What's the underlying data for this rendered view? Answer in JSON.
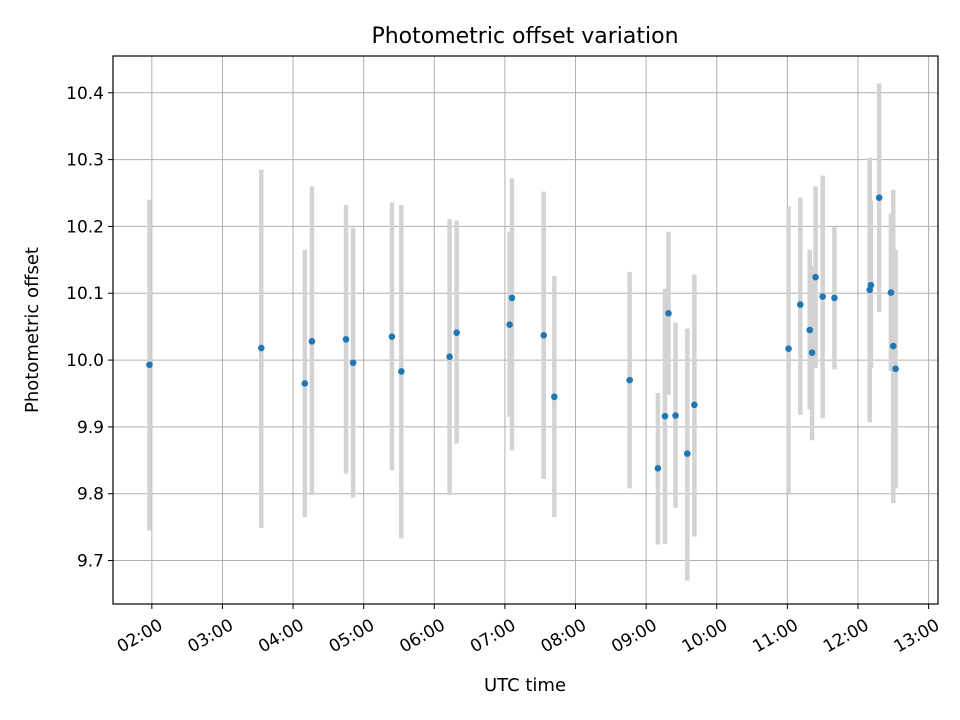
{
  "chart_data": {
    "type": "scatter",
    "title": "Photometric offset variation",
    "xlabel": "UTC time",
    "ylabel": "Photometric offset",
    "x_axis": {
      "kind": "time",
      "range": [
        "01:27",
        "13:08"
      ],
      "ticks": [
        "02:00",
        "03:00",
        "04:00",
        "05:00",
        "06:00",
        "07:00",
        "08:00",
        "09:00",
        "10:00",
        "11:00",
        "12:00",
        "13:00"
      ]
    },
    "y_axis": {
      "range": [
        9.635,
        10.455
      ],
      "ticks": [
        "9.7",
        "9.8",
        "9.9",
        "10.0",
        "10.1",
        "10.2",
        "10.3",
        "10.4"
      ]
    },
    "grid": true,
    "colors": {
      "point": "#1f77b4",
      "errorbar": "#d3d3d3",
      "grid": "#b0b0b0"
    },
    "series": [
      {
        "points": [
          {
            "x": "01:58",
            "y": 9.993,
            "lo": 9.745,
            "hi": 10.24
          },
          {
            "x": "03:33",
            "y": 10.018,
            "lo": 9.749,
            "hi": 10.285
          },
          {
            "x": "04:10",
            "y": 9.965,
            "lo": 9.765,
            "hi": 10.165
          },
          {
            "x": "04:16",
            "y": 10.028,
            "lo": 9.798,
            "hi": 10.26
          },
          {
            "x": "04:45",
            "y": 10.031,
            "lo": 9.83,
            "hi": 10.232
          },
          {
            "x": "04:51",
            "y": 9.996,
            "lo": 9.794,
            "hi": 10.198
          },
          {
            "x": "05:24",
            "y": 10.035,
            "lo": 9.835,
            "hi": 10.236
          },
          {
            "x": "05:32",
            "y": 9.983,
            "lo": 9.733,
            "hi": 10.232
          },
          {
            "x": "06:13",
            "y": 10.005,
            "lo": 9.798,
            "hi": 10.211
          },
          {
            "x": "06:19",
            "y": 10.041,
            "lo": 9.875,
            "hi": 10.209
          },
          {
            "x": "07:04",
            "y": 10.053,
            "lo": 9.915,
            "hi": 10.192
          },
          {
            "x": "07:06",
            "y": 10.093,
            "lo": 9.865,
            "hi": 10.272
          },
          {
            "x": "07:33",
            "y": 10.037,
            "lo": 9.822,
            "hi": 10.252
          },
          {
            "x": "07:42",
            "y": 9.945,
            "lo": 9.765,
            "hi": 10.126
          },
          {
            "x": "08:46",
            "y": 9.97,
            "lo": 9.808,
            "hi": 10.132
          },
          {
            "x": "09:10",
            "y": 9.838,
            "lo": 9.724,
            "hi": 9.951
          },
          {
            "x": "09:16",
            "y": 9.916,
            "lo": 9.725,
            "hi": 10.107
          },
          {
            "x": "09:19",
            "y": 10.07,
            "lo": 9.948,
            "hi": 10.192
          },
          {
            "x": "09:25",
            "y": 9.917,
            "lo": 9.779,
            "hi": 10.056
          },
          {
            "x": "09:35",
            "y": 9.86,
            "lo": 9.67,
            "hi": 10.047
          },
          {
            "x": "09:41",
            "y": 9.933,
            "lo": 9.736,
            "hi": 10.128
          },
          {
            "x": "11:01",
            "y": 10.017,
            "lo": 9.801,
            "hi": 10.23
          },
          {
            "x": "11:11",
            "y": 10.083,
            "lo": 9.918,
            "hi": 10.243
          },
          {
            "x": "11:19",
            "y": 10.045,
            "lo": 9.926,
            "hi": 10.165
          },
          {
            "x": "11:21",
            "y": 10.011,
            "lo": 9.88,
            "hi": 10.141
          },
          {
            "x": "11:24",
            "y": 10.124,
            "lo": 9.988,
            "hi": 10.26
          },
          {
            "x": "11:30",
            "y": 10.095,
            "lo": 9.913,
            "hi": 10.276
          },
          {
            "x": "11:40",
            "y": 10.093,
            "lo": 9.986,
            "hi": 10.199
          },
          {
            "x": "12:10",
            "y": 10.105,
            "lo": 9.907,
            "hi": 10.303
          },
          {
            "x": "12:11",
            "y": 10.112,
            "lo": 9.988,
            "hi": 10.238
          },
          {
            "x": "12:18",
            "y": 10.243,
            "lo": 10.072,
            "hi": 10.414
          },
          {
            "x": "12:28",
            "y": 10.101,
            "lo": 9.983,
            "hi": 10.219
          },
          {
            "x": "12:30",
            "y": 10.021,
            "lo": 9.786,
            "hi": 10.255
          },
          {
            "x": "12:32",
            "y": 9.987,
            "lo": 9.808,
            "hi": 10.165
          }
        ]
      }
    ]
  }
}
